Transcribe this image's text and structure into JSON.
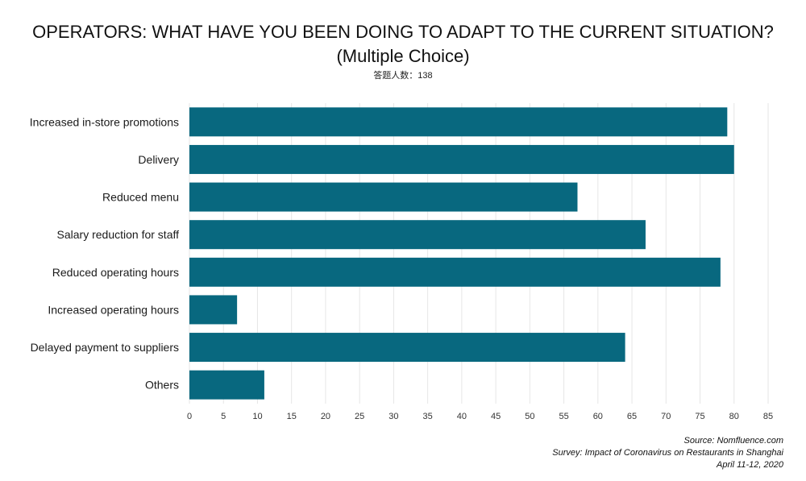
{
  "header": {
    "title": "OPERATORS: WHAT HAVE YOU BEEN DOING TO ADAPT TO THE CURRENT SITUATION?",
    "subtitle": "(Multiple Choice)",
    "respondents": "答题人数：138"
  },
  "chart_data": {
    "type": "bar",
    "orientation": "horizontal",
    "categories": [
      "Increased in-store promotions",
      "Delivery",
      "Reduced menu",
      "Salary reduction for staff",
      "Reduced operating hours",
      "Increased operating hours",
      "Delayed payment to suppliers",
      "Others"
    ],
    "values": [
      79,
      80,
      57,
      67,
      78,
      7,
      64,
      11
    ],
    "xlim": [
      0,
      85
    ],
    "xticks": [
      0,
      5,
      10,
      15,
      20,
      25,
      30,
      35,
      40,
      45,
      50,
      55,
      60,
      65,
      70,
      75,
      80,
      85
    ],
    "grid": true,
    "bar_color": "#08687f",
    "grid_color": "#e6e6e6"
  },
  "footer": {
    "source": "Source: Nomfluence.com",
    "survey": "Survey: Impact of Coronavirus on Restaurants in Shanghai",
    "date": "April 11-12, 2020"
  }
}
